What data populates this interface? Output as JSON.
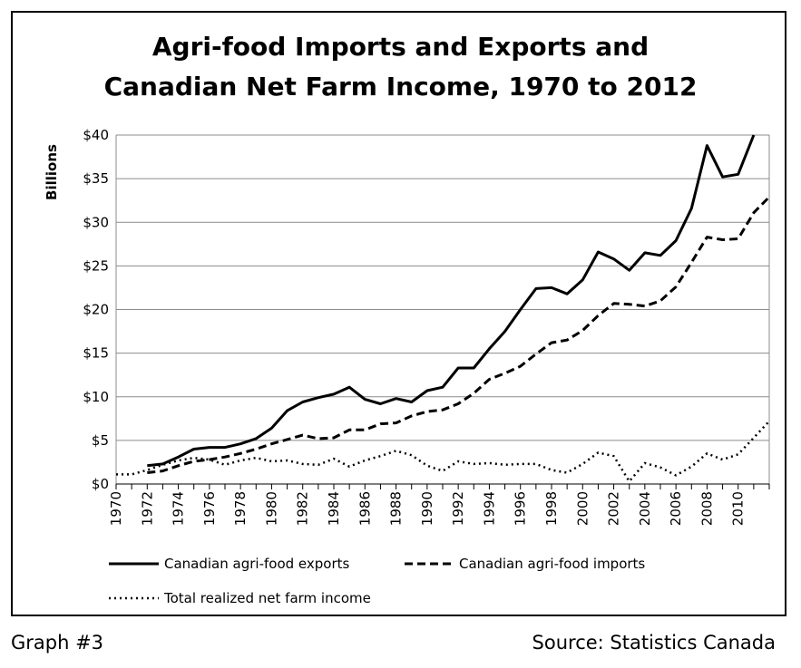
{
  "chart_data": {
    "type": "line",
    "title": [
      "Agri-food Imports and Exports and",
      "Canadian Net Farm Income, 1970 to 2012"
    ],
    "ylabel": "Billions",
    "xlabel": "",
    "ylim": [
      0,
      40
    ],
    "yticks": [
      0,
      5,
      10,
      15,
      20,
      25,
      30,
      35,
      40
    ],
    "ytick_labels": [
      "$0",
      "$5",
      "$10",
      "$15",
      "$20",
      "$25",
      "$30",
      "$35",
      "$40"
    ],
    "xticks": [
      1970,
      1972,
      1974,
      1976,
      1978,
      1980,
      1982,
      1984,
      1986,
      1988,
      1990,
      1992,
      1994,
      1996,
      1998,
      2000,
      2002,
      2004,
      2006,
      2008,
      2010
    ],
    "xlim": [
      1970,
      2012
    ],
    "grid": "horizontal",
    "legend": "bottom",
    "series": [
      {
        "name": "Canadian agri-food exports",
        "style": "solid",
        "x": [
          1972,
          1973,
          1974,
          1975,
          1976,
          1977,
          1978,
          1979,
          1980,
          1981,
          1982,
          1983,
          1984,
          1985,
          1986,
          1987,
          1988,
          1989,
          1990,
          1991,
          1992,
          1993,
          1994,
          1995,
          1996,
          1997,
          1998,
          1999,
          2000,
          2001,
          2002,
          2003,
          2004,
          2005,
          2006,
          2007,
          2008,
          2009,
          2010,
          2011
        ],
        "values": [
          2.1,
          2.3,
          3.1,
          4.0,
          4.2,
          4.2,
          4.6,
          5.2,
          6.4,
          8.4,
          9.4,
          9.9,
          10.3,
          11.1,
          9.7,
          9.2,
          9.8,
          9.4,
          10.7,
          11.1,
          13.3,
          13.3,
          15.5,
          17.5,
          20.0,
          22.4,
          22.5,
          21.8,
          23.4,
          26.6,
          25.8,
          24.5,
          26.5,
          26.2,
          27.9,
          31.6,
          38.8,
          35.2,
          35.5,
          40.0
        ]
      },
      {
        "name": "Canadian agri-food imports",
        "style": "dashed",
        "x": [
          1972,
          1973,
          1974,
          1975,
          1976,
          1977,
          1978,
          1979,
          1980,
          1981,
          1982,
          1983,
          1984,
          1985,
          1986,
          1987,
          1988,
          1989,
          1990,
          1991,
          1992,
          1993,
          1994,
          1995,
          1996,
          1997,
          1998,
          1999,
          2000,
          2001,
          2002,
          2003,
          2004,
          2005,
          2006,
          2007,
          2008,
          2009,
          2010,
          2011,
          2012
        ],
        "values": [
          1.3,
          1.5,
          2.1,
          2.6,
          2.8,
          3.1,
          3.5,
          4.0,
          4.6,
          5.1,
          5.6,
          5.2,
          5.3,
          6.2,
          6.2,
          6.9,
          7.0,
          7.8,
          8.3,
          8.5,
          9.2,
          10.4,
          12.0,
          12.7,
          13.5,
          14.9,
          16.2,
          16.5,
          17.6,
          19.3,
          20.7,
          20.6,
          20.4,
          21.0,
          22.6,
          25.4,
          28.3,
          28.0,
          28.1,
          31.1,
          32.9
        ]
      },
      {
        "name": "Total realized net farm income",
        "style": "dotted",
        "x": [
          1970,
          1971,
          1972,
          1973,
          1974,
          1975,
          1976,
          1977,
          1978,
          1979,
          1980,
          1981,
          1982,
          1983,
          1984,
          1985,
          1986,
          1987,
          1988,
          1989,
          1990,
          1991,
          1992,
          1993,
          1994,
          1995,
          1996,
          1997,
          1998,
          1999,
          2000,
          2001,
          2002,
          2003,
          2004,
          2005,
          2006,
          2007,
          2008,
          2009,
          2010,
          2011,
          2012
        ],
        "values": [
          1.1,
          1.1,
          1.6,
          2.2,
          2.7,
          3.0,
          2.8,
          2.2,
          2.7,
          3.0,
          2.6,
          2.7,
          2.3,
          2.2,
          2.9,
          2.0,
          2.7,
          3.2,
          3.8,
          3.3,
          2.1,
          1.5,
          2.6,
          2.3,
          2.4,
          2.2,
          2.3,
          2.3,
          1.6,
          1.3,
          2.3,
          3.6,
          3.2,
          0.3,
          2.4,
          1.9,
          1.0,
          2.0,
          3.5,
          2.8,
          3.4,
          5.3,
          7.2
        ]
      }
    ]
  },
  "footer": {
    "left": "Graph #3",
    "right": "Source: Statistics Canada"
  }
}
